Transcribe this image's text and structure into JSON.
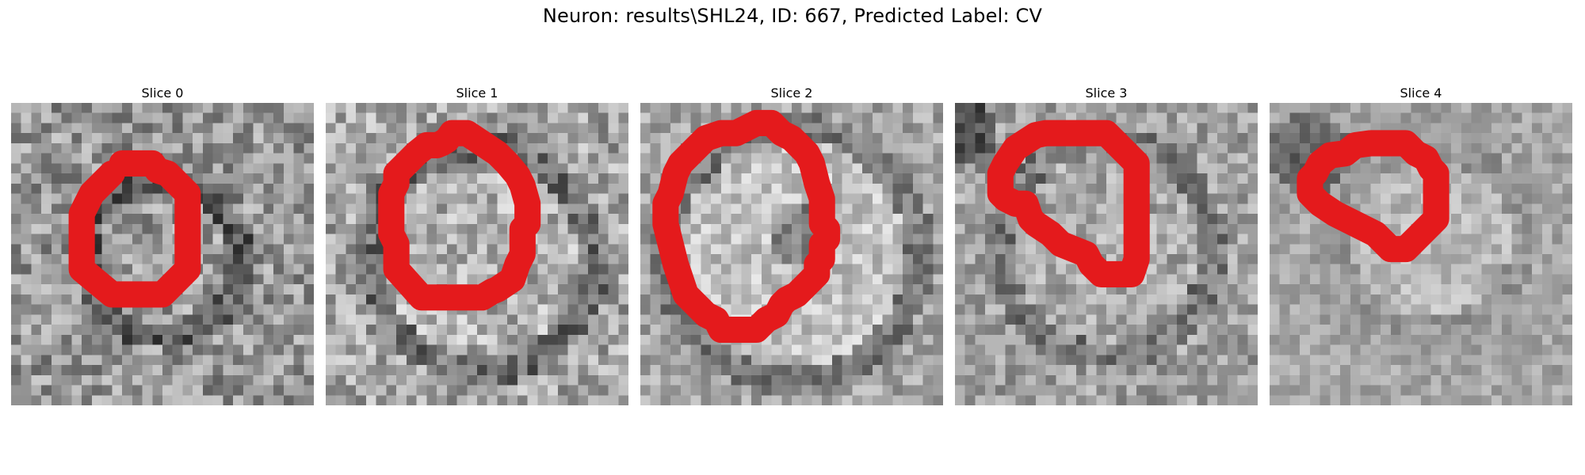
{
  "figure": {
    "title": "Neuron: results\\SHL24, ID: 667, Predicted Label: CV"
  },
  "colors": {
    "contour": "#e41a1c",
    "background": "#ffffff",
    "colormap": "grayscale"
  },
  "slices": [
    {
      "label": "Slice 0"
    },
    {
      "label": "Slice 1"
    },
    {
      "label": "Slice 2"
    },
    {
      "label": "Slice 3"
    },
    {
      "label": "Slice 4"
    }
  ]
}
